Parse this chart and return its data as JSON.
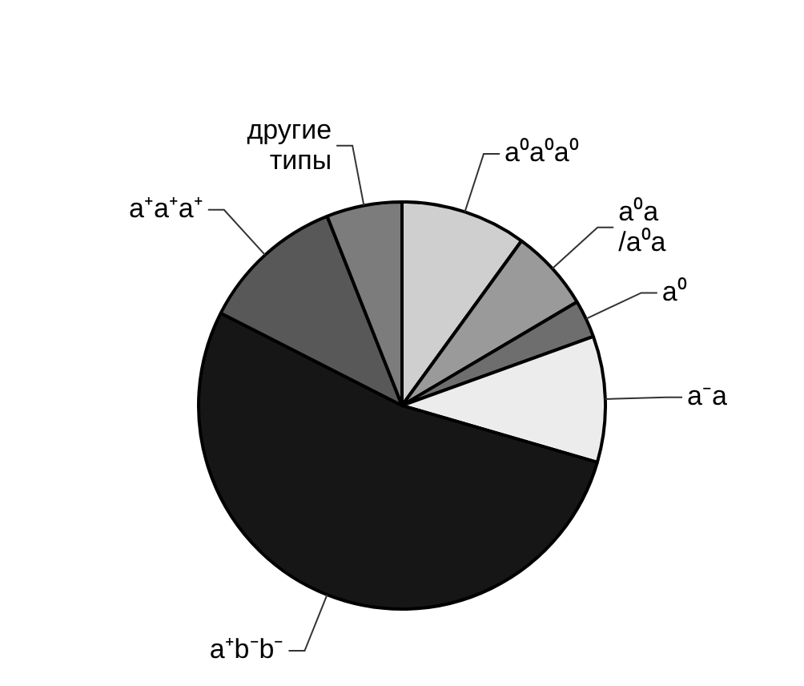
{
  "chart_data": {
    "type": "pie",
    "categories": [
      "a⁰a⁰a⁰",
      "a⁰a\n/a⁰a",
      "a⁰",
      "a⁻a",
      "a⁺b⁻b⁻",
      "a⁺a⁺a⁺",
      "другие\nтипы"
    ],
    "values": [
      10,
      6.5,
      3,
      10,
      53,
      11.5,
      6
    ],
    "colors": [
      "#cfcfcf",
      "#9a9a9a",
      "#6e6e6e",
      "#ececec",
      "#161616",
      "#585858",
      "#7c7c7c"
    ],
    "legend": false
  }
}
